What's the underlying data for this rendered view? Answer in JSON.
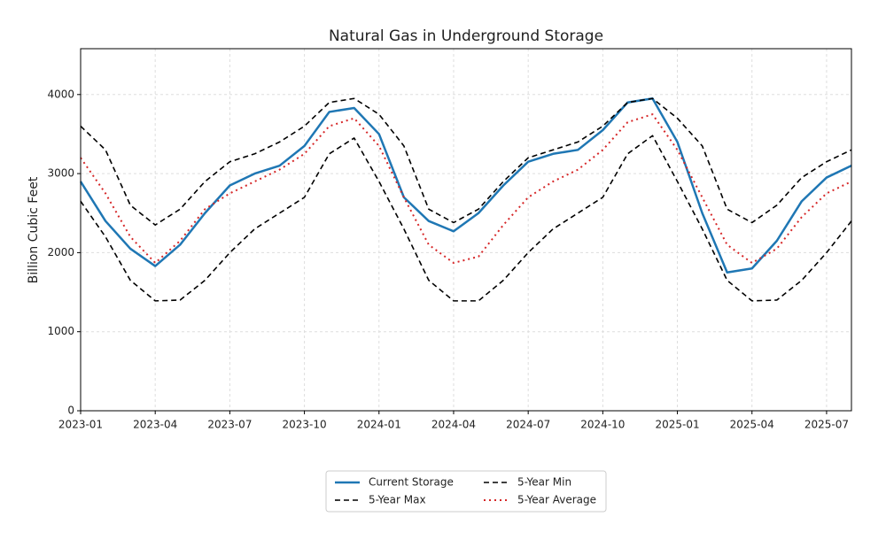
{
  "chart_data": {
    "type": "line",
    "title": "Natural Gas in Underground Storage",
    "y_label": "Billion Cubic Feet",
    "x": [
      "2023-01",
      "2023-02",
      "2023-03",
      "2023-04",
      "2023-05",
      "2023-06",
      "2023-07",
      "2023-08",
      "2023-09",
      "2023-10",
      "2023-11",
      "2023-12",
      "2024-01",
      "2024-02",
      "2024-03",
      "2024-04",
      "2024-05",
      "2024-06",
      "2024-07",
      "2024-08",
      "2024-09",
      "2024-10",
      "2024-11",
      "2024-12",
      "2025-01",
      "2025-02",
      "2025-03",
      "2025-04",
      "2025-05",
      "2025-06",
      "2025-07",
      "2025-08"
    ],
    "series": [
      {
        "name": "Current Storage",
        "color": "#1f77b4",
        "dash": "solid",
        "values": [
          2900,
          2400,
          2050,
          1830,
          2100,
          2500,
          2850,
          3000,
          3100,
          3350,
          3780,
          3830,
          3500,
          2700,
          2400,
          2270,
          2500,
          2850,
          3150,
          3250,
          3300,
          3550,
          3900,
          3950,
          3400,
          2500,
          1750,
          1800,
          2150,
          2650,
          2950,
          3100
        ]
      },
      {
        "name": "5-Year Max",
        "color": "#000000",
        "dash": "dashed",
        "values": [
          3600,
          3300,
          2600,
          2350,
          2550,
          2900,
          3150,
          3250,
          3400,
          3600,
          3900,
          3950,
          3750,
          3350,
          2550,
          2380,
          2550,
          2900,
          3200,
          3300,
          3400,
          3600,
          3900,
          3950,
          3700,
          3350,
          2550,
          2380,
          2600,
          2950,
          3150,
          3300
        ]
      },
      {
        "name": "5-Year Min",
        "color": "#000000",
        "dash": "dashed",
        "values": [
          2650,
          2200,
          1650,
          1390,
          1400,
          1650,
          2000,
          2300,
          2500,
          2700,
          3250,
          3450,
          2900,
          2300,
          1650,
          1390,
          1390,
          1650,
          2000,
          2300,
          2500,
          2700,
          3250,
          3480,
          2900,
          2300,
          1650,
          1390,
          1400,
          1650,
          2000,
          2400
        ]
      },
      {
        "name": "5-Year Average",
        "color": "#d62728",
        "dash": "dotted",
        "values": [
          3200,
          2750,
          2200,
          1870,
          2150,
          2550,
          2750,
          2900,
          3050,
          3250,
          3600,
          3700,
          3350,
          2700,
          2100,
          1870,
          1950,
          2350,
          2700,
          2900,
          3050,
          3300,
          3650,
          3750,
          3300,
          2700,
          2100,
          1870,
          2050,
          2450,
          2750,
          2900
        ]
      }
    ],
    "xlim": [
      "2023-01",
      "2025-08"
    ],
    "xticks": [
      "2023-01",
      "2023-04",
      "2023-07",
      "2023-10",
      "2024-01",
      "2024-04",
      "2024-07",
      "2024-10",
      "2025-01",
      "2025-04",
      "2025-07"
    ],
    "ylim": [
      0,
      4580
    ],
    "yticks": [
      0,
      1000,
      2000,
      3000,
      4000
    ],
    "grid": true,
    "legend": "lower center"
  }
}
